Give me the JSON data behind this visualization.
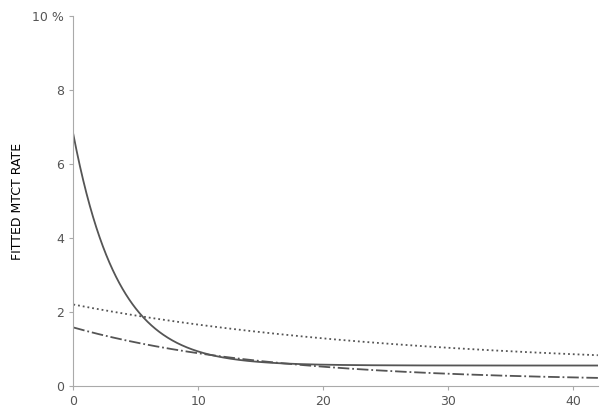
{
  "title": "",
  "ylabel": "FITTED MTCT RATE",
  "xlabel": "",
  "xlim": [
    0,
    42
  ],
  "ylim": [
    0,
    10
  ],
  "yticks": [
    0,
    2,
    4,
    6,
    8,
    10
  ],
  "ytick_labels": [
    "0",
    "2",
    "4",
    "6",
    "8",
    "10 %"
  ],
  "xticks": [
    0,
    10,
    20,
    30,
    40
  ],
  "background_color": "#ffffff",
  "line_color": "#555555",
  "solid_start": 6.8,
  "solid_decay": 0.28,
  "solid_floor": 0.55,
  "dotted_start": 2.2,
  "dotted_decay": 0.038,
  "dotted_floor": 0.48,
  "dashdot_start": 1.58,
  "dashdot_decay": 0.065,
  "dashdot_floor": 0.12
}
